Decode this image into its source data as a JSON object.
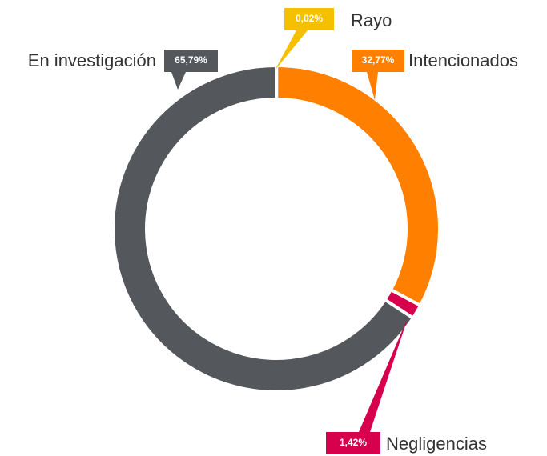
{
  "chart_data": {
    "type": "pie",
    "categories": [
      "Rayo",
      "Intencionados",
      "Negligencias",
      "En investigación"
    ],
    "values": [
      0.02,
      32.77,
      1.42,
      65.79
    ],
    "value_labels": [
      "0,02%",
      "32,77%",
      "1,42%",
      "65,79%"
    ],
    "colors": [
      "#f5c000",
      "#ff8000",
      "#d6004c",
      "#54585d"
    ]
  }
}
